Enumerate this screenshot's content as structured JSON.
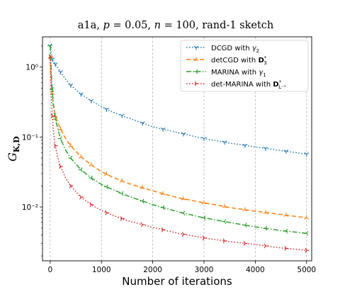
{
  "chart_data": {
    "type": "line",
    "title": "a1a, p = 0.05, n = 100, rand-1 sketch",
    "title_parts": {
      "dataset": "a1a, ",
      "p_sym": "p",
      "p_val": " = 0.05, ",
      "n_sym": "n",
      "n_val": " = 100, rand-1 sketch"
    },
    "xlabel": "Number of iterations",
    "ylabel": "G_{K,D}",
    "ylabel_parts": {
      "main": "G",
      "sub": "K,D"
    },
    "xlim": [
      -150,
      5100
    ],
    "ylim": [
      0.0017,
      2.7
    ],
    "yscale": "log",
    "xticks": [
      0,
      1000,
      2000,
      3000,
      4000,
      5000
    ],
    "xtick_labels": [
      "0",
      "1000",
      "2000",
      "3000",
      "4000",
      "5000"
    ],
    "yticks": [
      0.01,
      0.1,
      1
    ],
    "ytick_labels": [
      "10⁻²",
      "10⁻¹",
      "10⁰"
    ],
    "grid": "vertical dashed at x ticks",
    "legend_position": "top-right",
    "series": [
      {
        "name": "DCGD with γ2",
        "legend_text": "DCGD with ",
        "legend_math": "γ",
        "legend_sub": "2",
        "legend_sup": "",
        "color": "#1f77b4",
        "dash": "1.5,2.5",
        "marker": "tri_down",
        "x": [
          0,
          40,
          100,
          200,
          300,
          400,
          600,
          800,
          1000,
          1200,
          1500,
          2000,
          2500,
          3000,
          3500,
          4000,
          4500,
          5000
        ],
        "y": [
          2.0,
          1.3,
          1.1,
          0.85,
          0.67,
          0.55,
          0.41,
          0.33,
          0.27,
          0.23,
          0.19,
          0.14,
          0.115,
          0.095,
          0.082,
          0.072,
          0.064,
          0.057
        ]
      },
      {
        "name": "detCGD with D3*",
        "legend_text": "detCGD with ",
        "legend_math": "D",
        "legend_sub": "3",
        "legend_sup": "*",
        "color": "#ff7f0e",
        "dash": "6,3.5",
        "marker": "tri_up",
        "x": [
          0,
          30,
          60,
          100,
          200,
          300,
          400,
          600,
          800,
          1000,
          1200,
          1500,
          2000,
          2500,
          3000,
          3500,
          4000,
          4500,
          5000
        ],
        "y": [
          1.4,
          0.5,
          0.3,
          0.2,
          0.13,
          0.095,
          0.075,
          0.052,
          0.04,
          0.032,
          0.027,
          0.022,
          0.017,
          0.0135,
          0.0115,
          0.0098,
          0.0087,
          0.0078,
          0.007
        ]
      },
      {
        "name": "MARINA with γ1",
        "legend_text": "MARINA with ",
        "legend_math": "γ",
        "legend_sub": "1",
        "legend_sup": "",
        "color": "#2ca02c",
        "dash": "7,2.5,1.5,2.5",
        "marker": "tri_left",
        "x": [
          0,
          30,
          60,
          100,
          200,
          300,
          400,
          600,
          800,
          1000,
          1200,
          1500,
          2000,
          2500,
          3000,
          3500,
          4000,
          4500,
          5000
        ],
        "y": [
          2.0,
          0.6,
          0.3,
          0.18,
          0.095,
          0.065,
          0.05,
          0.034,
          0.026,
          0.021,
          0.018,
          0.0145,
          0.0108,
          0.0085,
          0.007,
          0.006,
          0.0052,
          0.0046,
          0.0042
        ]
      },
      {
        "name": "det-MARINA with D_{L^-1}*",
        "legend_text": "det-MARINA with ",
        "legend_math": "D",
        "legend_sub": "L⁻¹",
        "legend_sup": "*",
        "color": "#d62728",
        "dash": "1.5,2.5",
        "marker": "tri_right",
        "x": [
          0,
          20,
          40,
          70,
          100,
          150,
          200,
          300,
          400,
          600,
          800,
          1000,
          1200,
          1500,
          2000,
          2500,
          3000,
          3500,
          4000,
          4500,
          5000
        ],
        "y": [
          1.4,
          0.4,
          0.2,
          0.11,
          0.075,
          0.05,
          0.038,
          0.026,
          0.02,
          0.0138,
          0.0108,
          0.0089,
          0.0077,
          0.0064,
          0.0051,
          0.0042,
          0.0036,
          0.0032,
          0.0029,
          0.0026,
          0.0024
        ]
      }
    ]
  }
}
